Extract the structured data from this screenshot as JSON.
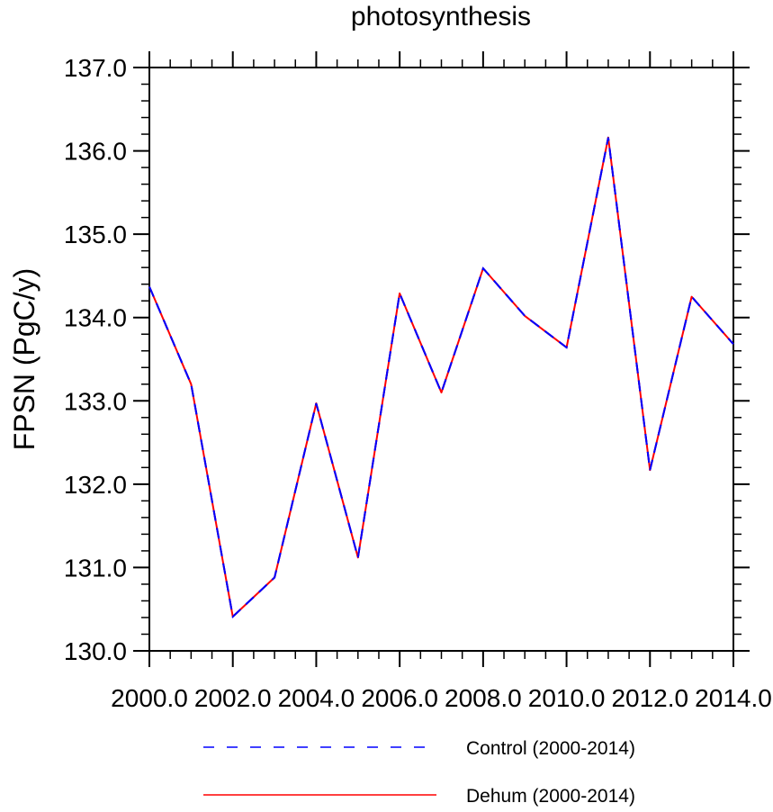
{
  "chart_data": {
    "type": "line",
    "title": "photosynthesis",
    "xlabel": "",
    "ylabel": "FPSN  (PgC/y)",
    "xlim": [
      2000,
      2014
    ],
    "ylim": [
      130,
      137
    ],
    "x_ticks": [
      2000,
      2002,
      2004,
      2006,
      2008,
      2010,
      2012,
      2014
    ],
    "x_tick_labels": [
      "2000.0",
      "2002.0",
      "2004.0",
      "2006.0",
      "2008.0",
      "2010.0",
      "2012.0",
      "2014.0"
    ],
    "y_ticks": [
      130,
      131,
      132,
      133,
      134,
      135,
      136,
      137
    ],
    "y_tick_labels": [
      "130.0",
      "131.0",
      "132.0",
      "133.0",
      "134.0",
      "135.0",
      "136.0",
      "137.0"
    ],
    "grid": false,
    "legend_position": "bottom-center",
    "x": [
      2000,
      2001,
      2002,
      2003,
      2004,
      2005,
      2006,
      2007,
      2008,
      2009,
      2010,
      2011,
      2012,
      2013,
      2014
    ],
    "series": [
      {
        "name": "Control (2000-2014)",
        "color": "#0000ff",
        "style": "dashed",
        "values": [
          134.37,
          133.2,
          130.41,
          130.88,
          132.97,
          131.12,
          134.29,
          133.1,
          134.59,
          134.02,
          133.64,
          136.16,
          132.17,
          134.25,
          133.68
        ]
      },
      {
        "name": "Dehum (2000-2014)",
        "color": "#ff0000",
        "style": "solid",
        "values": [
          134.37,
          133.2,
          130.41,
          130.88,
          132.97,
          131.12,
          134.29,
          133.1,
          134.59,
          134.02,
          133.64,
          136.16,
          132.17,
          134.25,
          133.68
        ]
      }
    ]
  }
}
